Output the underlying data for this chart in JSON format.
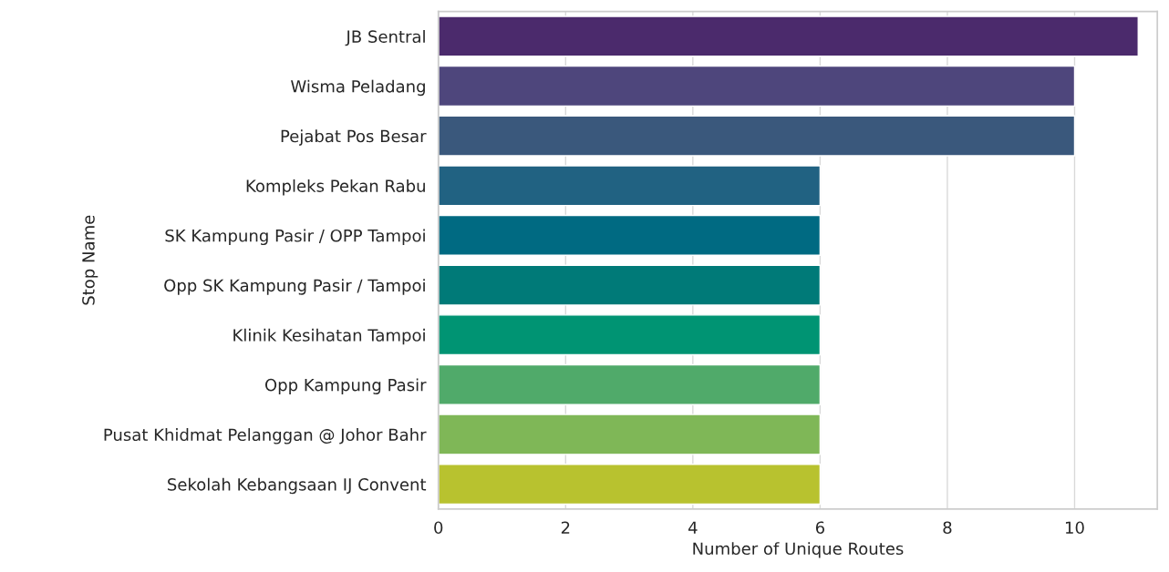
{
  "chart_data": {
    "type": "bar",
    "orientation": "horizontal",
    "xlabel": "Number of Unique Routes",
    "ylabel": "Stop Name",
    "categories": [
      "JB Sentral",
      "Wisma Peladang",
      "Pejabat Pos Besar",
      "Kompleks Pekan Rabu",
      "SK Kampung Pasir / OPP Tampoi",
      "Opp SK Kampung Pasir / Tampoi",
      "Klinik Kesihatan Tampoi",
      "Opp Kampung Pasir",
      "Pusat Khidmat Pelanggan @ Johor Bahr",
      "Sekolah Kebangsaan IJ Convent"
    ],
    "values": [
      11,
      10,
      10,
      6,
      6,
      6,
      6,
      6,
      6,
      6
    ],
    "colors": [
      "#4b2a6c",
      "#4e467c",
      "#3a587c",
      "#216282",
      "#006a82",
      "#007a78",
      "#009473",
      "#50aa6a",
      "#7fb757",
      "#b8c22f"
    ],
    "xlim": [
      0,
      11.3
    ],
    "xticks": [
      0,
      2,
      4,
      6,
      8,
      10
    ],
    "grid": "x"
  }
}
